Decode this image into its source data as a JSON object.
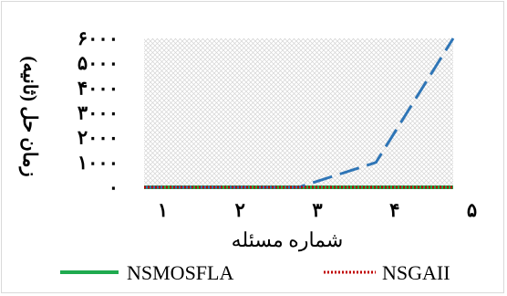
{
  "chart_data": {
    "type": "line",
    "x": [
      1,
      2,
      3,
      4,
      5
    ],
    "x_tick_labels": [
      "۱",
      "۲",
      "۳",
      "۴",
      "۵"
    ],
    "series": [
      {
        "name": "NSMOSFLA",
        "x": [
          0.9,
          1.9,
          2.9,
          3.9,
          4.9
        ],
        "values": [
          0,
          0,
          0,
          0,
          0
        ],
        "color": "#1faa4f",
        "style": "solid"
      },
      {
        "name": "NSGAII",
        "x": [
          0.9,
          1.9,
          2.9,
          3.9,
          4.9
        ],
        "values": [
          0,
          0,
          0,
          0,
          0
        ],
        "color": "#c00000",
        "style": "dotted"
      },
      {
        "name": "",
        "x": [
          0.9,
          1.9,
          2.9,
          3.9,
          4.9
        ],
        "values": [
          0,
          0,
          0,
          1000,
          6000
        ],
        "color": "#2e75b6",
        "style": "dashed"
      }
    ],
    "y_ticks": [
      0,
      1000,
      2000,
      3000,
      4000,
      5000,
      6000
    ],
    "y_tick_labels": [
      "۰",
      "۱۰۰۰",
      "۲۰۰۰",
      "۳۰۰۰",
      "۴۰۰۰",
      "۵۰۰۰",
      "۶۰۰۰"
    ],
    "ylim": [
      0,
      6000
    ],
    "xlim": [
      0.9,
      4.9
    ],
    "xlabel": "شماره مسئله",
    "ylabel": "زمان حل (ثانیه)",
    "grid": "hatched plot area",
    "legend_position": "bottom"
  }
}
